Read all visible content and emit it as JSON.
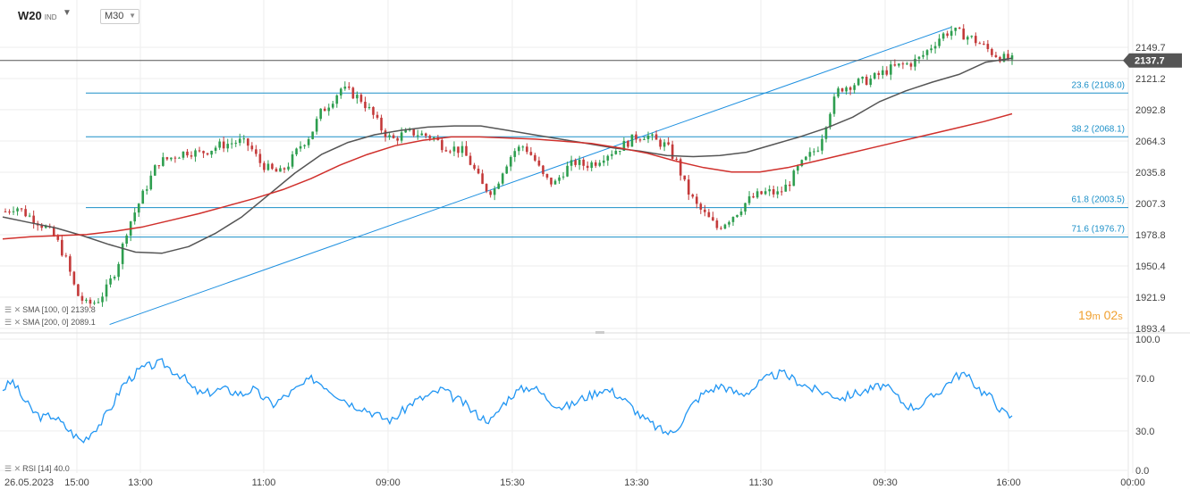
{
  "header": {
    "symbol": "W20",
    "exchange": "IND",
    "timeframe": "M30"
  },
  "indicators": {
    "sma100": {
      "label": "SMA",
      "params": "[100,  0]",
      "value": "2139.8",
      "color": "#555555"
    },
    "sma200": {
      "label": "SMA",
      "params": "[200,  0]",
      "value": "2089.1",
      "color": "#d0302c"
    },
    "rsi": {
      "label": "RSI",
      "params": "[14]",
      "value": "40.0",
      "color": "#2196f3"
    }
  },
  "timer": {
    "m": "19",
    "m_unit": "m",
    "s": "02",
    "s_unit": "s"
  },
  "chart_data": [
    {
      "type": "candlestick",
      "x_ticks": [
        "26.05.2023",
        "15:00",
        "13:00",
        "11:00",
        "09:00",
        "15:30",
        "13:30",
        "11:30",
        "09:30",
        "16:00",
        "00:00"
      ],
      "y_ticks": [
        "2149.7",
        "2121.2",
        "2092.8",
        "2064.3",
        "2035.8",
        "2007.3",
        "1978.8",
        "1950.4",
        "1921.9",
        "1893.4"
      ],
      "ylim": [
        1893.4,
        2170
      ],
      "current_price": "2137.7",
      "fibonacci": [
        {
          "label": "23.6 (2108.0)",
          "value": 2108.0
        },
        {
          "label": "38.2 (2068.1)",
          "value": 2068.1
        },
        {
          "label": "61.8 (2003.5)",
          "value": 2003.5
        },
        {
          "label": "71.6 (1976.7)",
          "value": 1976.7
        }
      ],
      "trendline": [
        [
          0.095,
          1897
        ],
        [
          0.8,
          2168
        ]
      ],
      "series": [
        {
          "name": "price",
          "values": [
            2000,
            2005,
            1998,
            1992,
            1985,
            1975,
            1955,
            1925,
            1915,
            1918,
            1930,
            1950,
            1985,
            2005,
            2025,
            2045,
            2048,
            2052,
            2055,
            2053,
            2056,
            2060,
            2062,
            2064,
            2060,
            2045,
            2038,
            2035,
            2045,
            2060,
            2070,
            2090,
            2100,
            2112,
            2108,
            2102,
            2090,
            2075,
            2065,
            2070,
            2072,
            2070,
            2068,
            2060,
            2058,
            2055,
            2040,
            2022,
            2018,
            2040,
            2055,
            2060,
            2048,
            2030,
            2025,
            2038,
            2045,
            2042,
            2045,
            2052,
            2056,
            2062,
            2068,
            2070,
            2064,
            2060,
            2045,
            2020,
            2005,
            1995,
            1985,
            1992,
            2000,
            2010,
            2015,
            2018,
            2016,
            2025,
            2040,
            2050,
            2060,
            2090,
            2112,
            2115,
            2118,
            2120,
            2125,
            2130,
            2133,
            2135,
            2140,
            2150,
            2160,
            2165,
            2162,
            2158,
            2152,
            2145,
            2140,
            2138
          ]
        },
        {
          "name": "SMA [100, 0]",
          "values": [
            1995,
            1990,
            1985,
            1978,
            1970,
            1963,
            1962,
            1968,
            1980,
            1995,
            2015,
            2035,
            2052,
            2063,
            2070,
            2074,
            2077,
            2078,
            2078,
            2074,
            2070,
            2066,
            2062,
            2058,
            2055,
            2051,
            2050,
            2051,
            2054,
            2061,
            2068,
            2076,
            2086,
            2100,
            2110,
            2118,
            2125,
            2136,
            2139.8
          ]
        },
        {
          "name": "SMA [200, 0]",
          "values": [
            1975,
            1977,
            1978,
            1979,
            1982,
            1986,
            1992,
            1998,
            2005,
            2012,
            2020,
            2030,
            2042,
            2052,
            2060,
            2065,
            2068,
            2068,
            2067,
            2066,
            2064,
            2062,
            2058,
            2053,
            2046,
            2040,
            2036,
            2036,
            2040,
            2046,
            2052,
            2058,
            2064,
            2070,
            2076,
            2082,
            2089.1
          ]
        }
      ]
    },
    {
      "type": "line",
      "name": "RSI [14]",
      "y_ticks": [
        "100.0",
        "70.0",
        "30.0",
        "0.0"
      ],
      "ylim": [
        0,
        100
      ],
      "values": [
        62,
        68,
        55,
        45,
        40,
        42,
        35,
        28,
        22,
        30,
        38,
        50,
        65,
        72,
        78,
        80,
        82,
        76,
        72,
        62,
        58,
        60,
        62,
        60,
        58,
        62,
        56,
        50,
        55,
        60,
        65,
        70,
        66,
        60,
        55,
        50,
        48,
        44,
        40,
        38,
        45,
        52,
        55,
        58,
        62,
        56,
        52,
        45,
        40,
        38,
        50,
        58,
        62,
        64,
        58,
        52,
        48,
        50,
        55,
        58,
        62,
        60,
        55,
        48,
        40,
        35,
        30,
        28,
        38,
        50,
        58,
        62,
        65,
        60,
        58,
        62,
        68,
        72,
        74,
        70,
        66,
        62,
        60,
        58,
        55,
        58,
        60,
        62,
        65,
        60,
        52,
        48,
        50,
        56,
        62,
        70,
        74,
        68,
        60,
        55,
        45,
        40
      ]
    }
  ]
}
